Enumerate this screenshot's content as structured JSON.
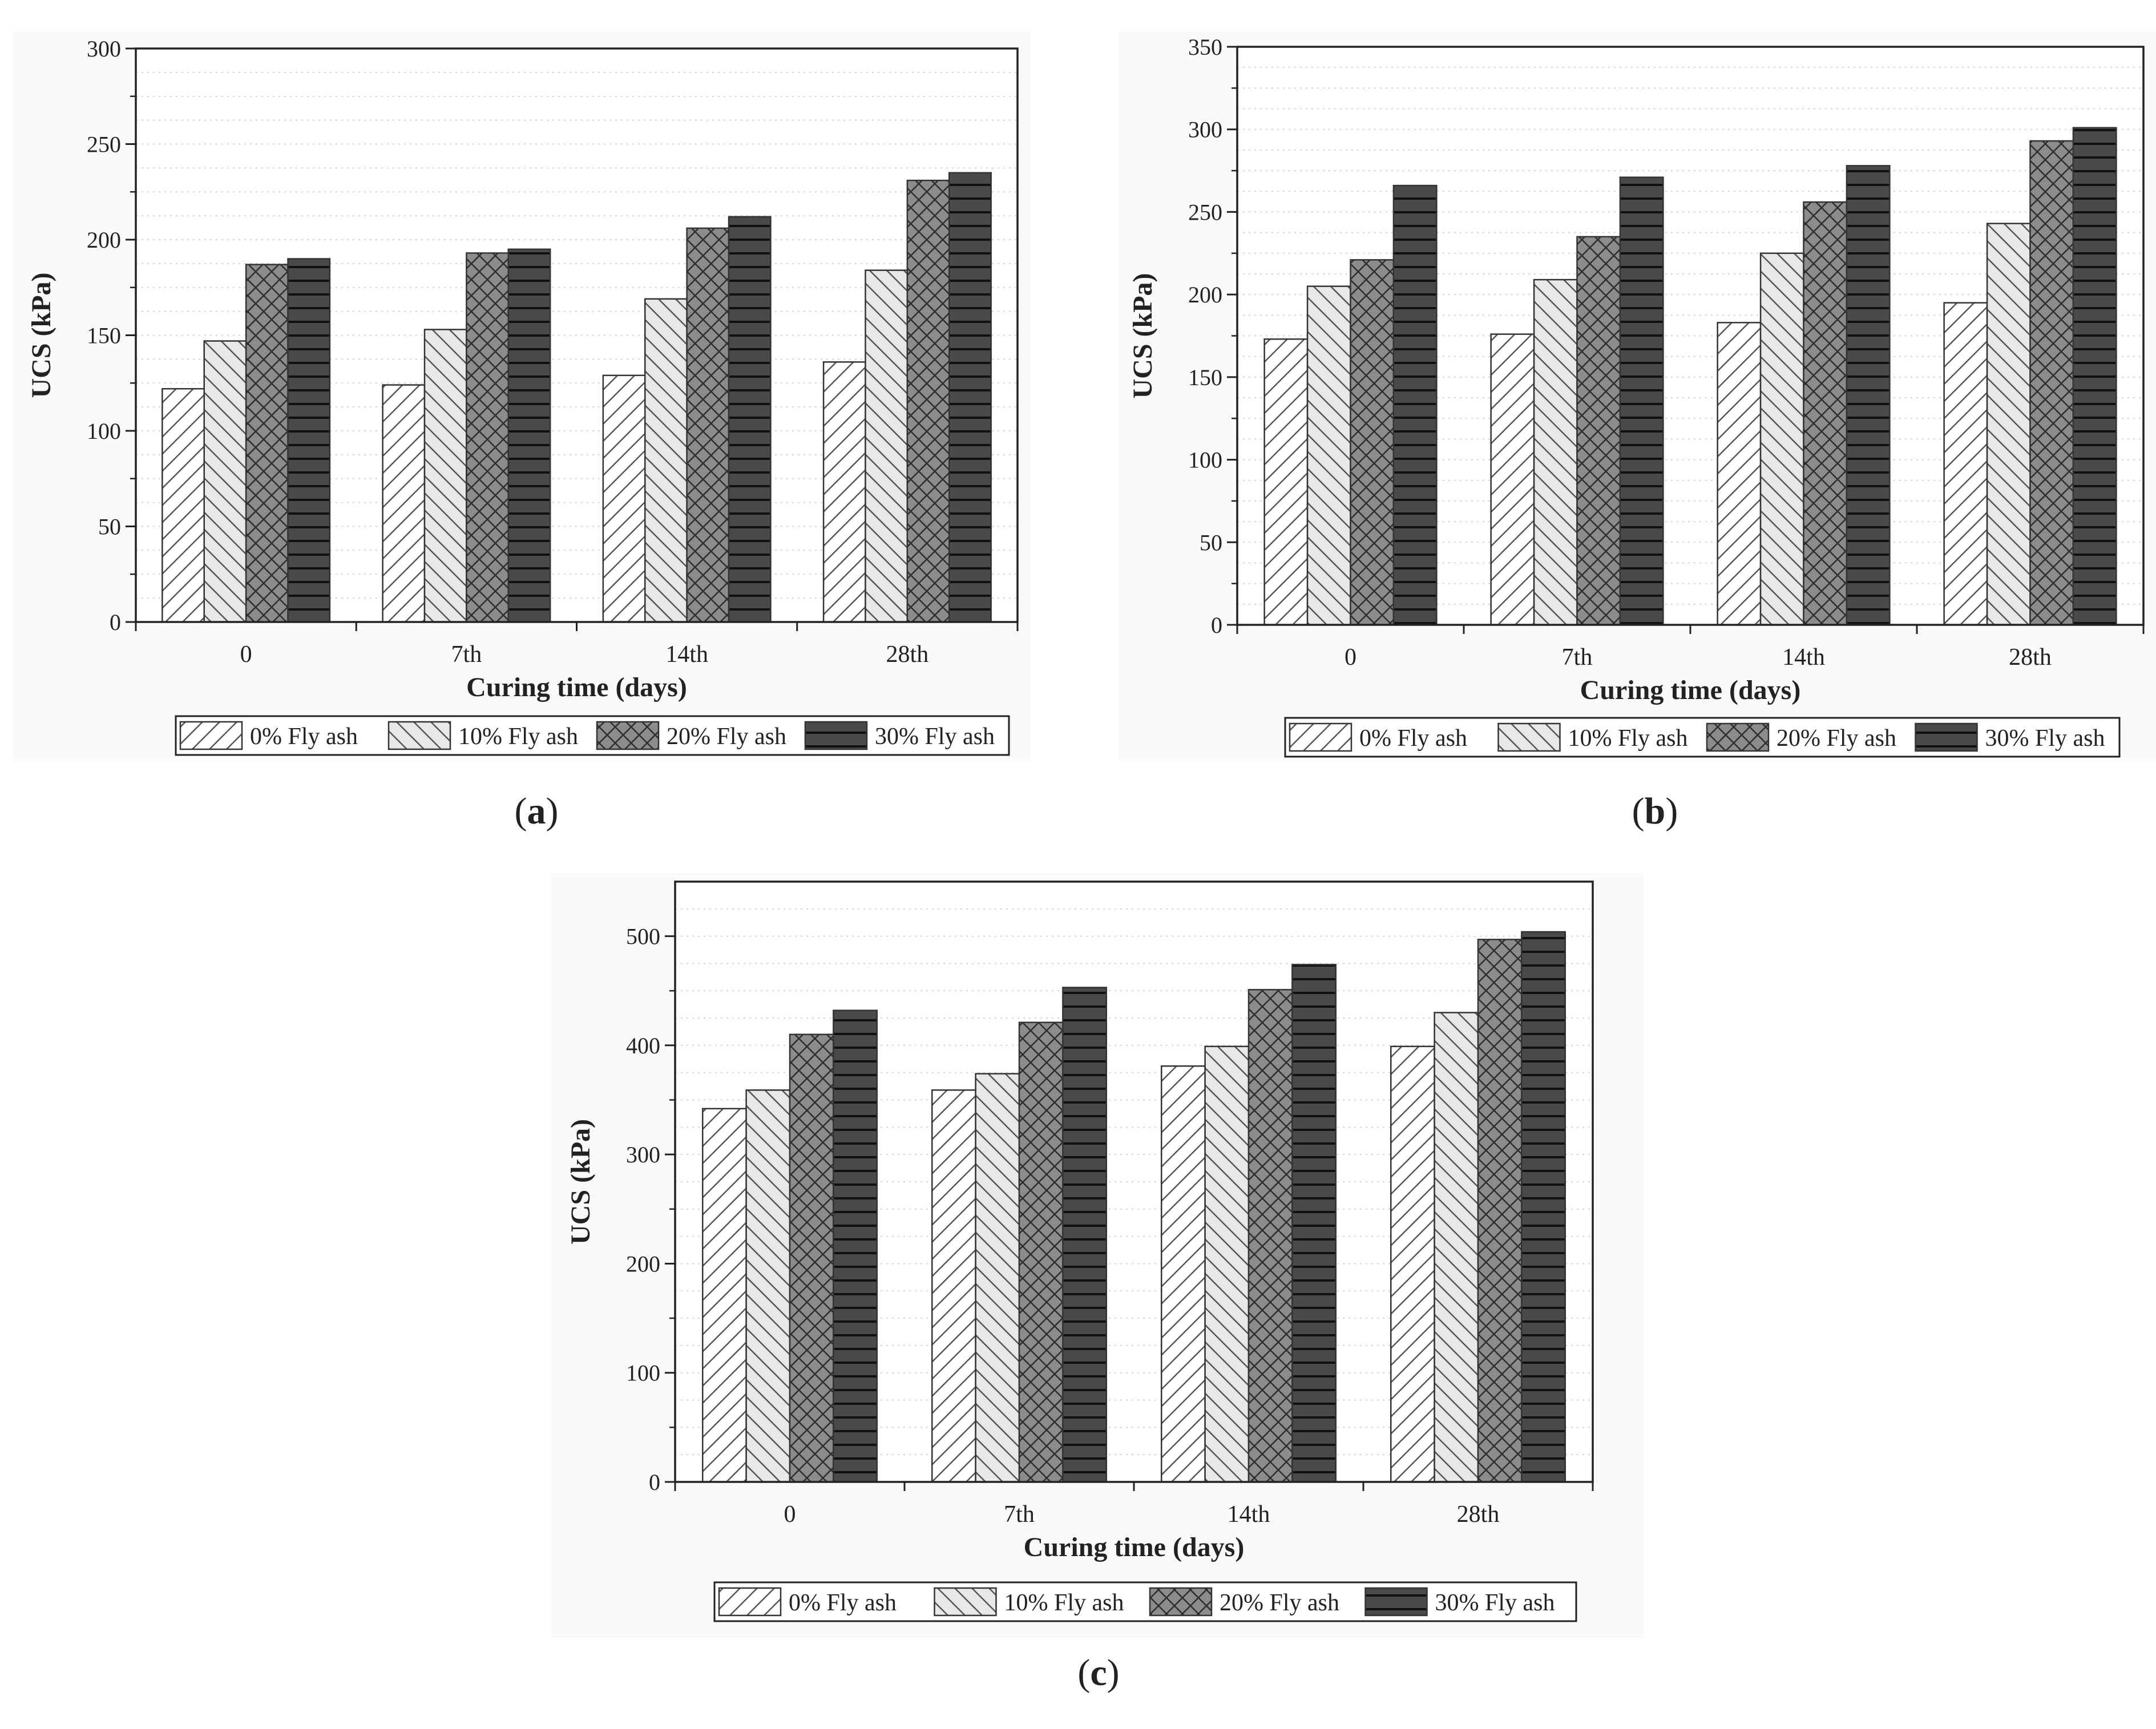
{
  "figure": {
    "panels": [
      "a",
      "b",
      "c"
    ]
  },
  "chart_data": [
    {
      "id": "a",
      "panel_label": "a",
      "type": "bar",
      "title": "",
      "xlabel": "Curing time (days)",
      "ylabel": "UCS (kPa)",
      "categories": [
        "0",
        "7th",
        "14th",
        "28th"
      ],
      "ylim": [
        0,
        300
      ],
      "yticks": [
        0,
        50,
        100,
        150,
        200,
        250,
        300
      ],
      "grid": true,
      "legend_position": "bottom",
      "series": [
        {
          "name": "0% Fly ash",
          "pattern": "diag-fwd",
          "values": [
            122,
            124,
            129,
            136
          ]
        },
        {
          "name": "10% Fly ash",
          "pattern": "diag-back",
          "values": [
            147,
            153,
            169,
            184
          ]
        },
        {
          "name": "20% Fly ash",
          "pattern": "crosshatch",
          "values": [
            187,
            193,
            206,
            231
          ]
        },
        {
          "name": "30% Fly ash",
          "pattern": "horizontal",
          "values": [
            190,
            195,
            212,
            235
          ]
        }
      ]
    },
    {
      "id": "b",
      "panel_label": "b",
      "type": "bar",
      "title": "",
      "xlabel": "Curing time (days)",
      "ylabel": "UCS (kPa)",
      "categories": [
        "0",
        "7th",
        "14th",
        "28th"
      ],
      "ylim": [
        0,
        350
      ],
      "yticks": [
        0,
        50,
        100,
        150,
        200,
        250,
        300,
        350
      ],
      "grid": true,
      "legend_position": "bottom",
      "series": [
        {
          "name": "0% Fly ash",
          "pattern": "diag-fwd",
          "values": [
            173,
            176,
            183,
            195
          ]
        },
        {
          "name": "10% Fly ash",
          "pattern": "diag-back",
          "values": [
            205,
            209,
            225,
            243
          ]
        },
        {
          "name": "20% Fly ash",
          "pattern": "crosshatch",
          "values": [
            221,
            235,
            256,
            293
          ]
        },
        {
          "name": "30% Fly ash",
          "pattern": "horizontal",
          "values": [
            266,
            271,
            278,
            301
          ]
        }
      ]
    },
    {
      "id": "c",
      "panel_label": "c",
      "type": "bar",
      "title": "",
      "xlabel": "Curing time (days)",
      "ylabel": "UCS (kPa)",
      "categories": [
        "0",
        "7th",
        "14th",
        "28th"
      ],
      "ylim": [
        0,
        550
      ],
      "yticks": [
        0,
        100,
        200,
        300,
        400,
        500
      ],
      "grid": true,
      "legend_position": "bottom",
      "series": [
        {
          "name": "0% Fly ash",
          "pattern": "diag-fwd",
          "values": [
            342,
            359,
            381,
            399
          ]
        },
        {
          "name": "10% Fly ash",
          "pattern": "diag-back",
          "values": [
            359,
            374,
            399,
            430
          ]
        },
        {
          "name": "20% Fly ash",
          "pattern": "crosshatch",
          "values": [
            410,
            421,
            451,
            497
          ]
        },
        {
          "name": "30% Fly ash",
          "pattern": "horizontal",
          "values": [
            432,
            453,
            474,
            504
          ]
        }
      ]
    }
  ]
}
